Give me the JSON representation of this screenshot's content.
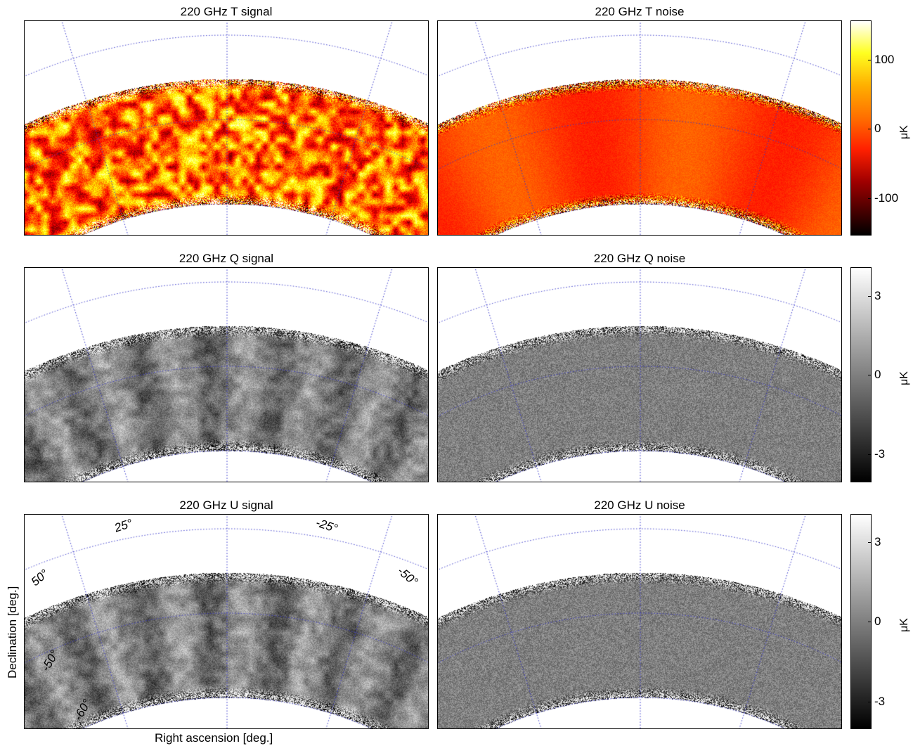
{
  "panels": [
    {
      "title": "220 GHz T signal",
      "colormap": "hot",
      "variant": "signal",
      "var": "T"
    },
    {
      "title": "220 GHz T noise",
      "colormap": "hot",
      "variant": "noise",
      "var": "T"
    },
    {
      "title": "220 GHz Q signal",
      "colormap": "gray",
      "variant": "signal",
      "var": "Q"
    },
    {
      "title": "220 GHz Q noise",
      "colormap": "gray",
      "variant": "noise",
      "var": "Q"
    },
    {
      "title": "220 GHz U signal",
      "colormap": "gray",
      "variant": "signal",
      "var": "U"
    },
    {
      "title": "220 GHz U noise",
      "colormap": "gray",
      "variant": "noise",
      "var": "U"
    }
  ],
  "colorbars": [
    {
      "ticks": [
        "100",
        "0",
        "-100"
      ],
      "unit": "μK",
      "colormap": "hot"
    },
    {
      "ticks": [
        "3",
        "0",
        "-3"
      ],
      "unit": "μK",
      "colormap": "gray"
    },
    {
      "ticks": [
        "3",
        "0",
        "-3"
      ],
      "unit": "μK",
      "colormap": "gray"
    }
  ],
  "grid_labels": {
    "ra_pos": "25°",
    "ra_neg": "-25°",
    "left_50": "50°",
    "right_50": "-50°",
    "dec_50": "-50°",
    "dec_60": "-60°"
  },
  "axes": {
    "xlabel": "Right ascension [deg.]",
    "ylabel": "Declination [deg.]"
  },
  "colors": {
    "grid": "#3333cc",
    "hot_low": "#000000",
    "hot_high": "#ffffff"
  }
}
